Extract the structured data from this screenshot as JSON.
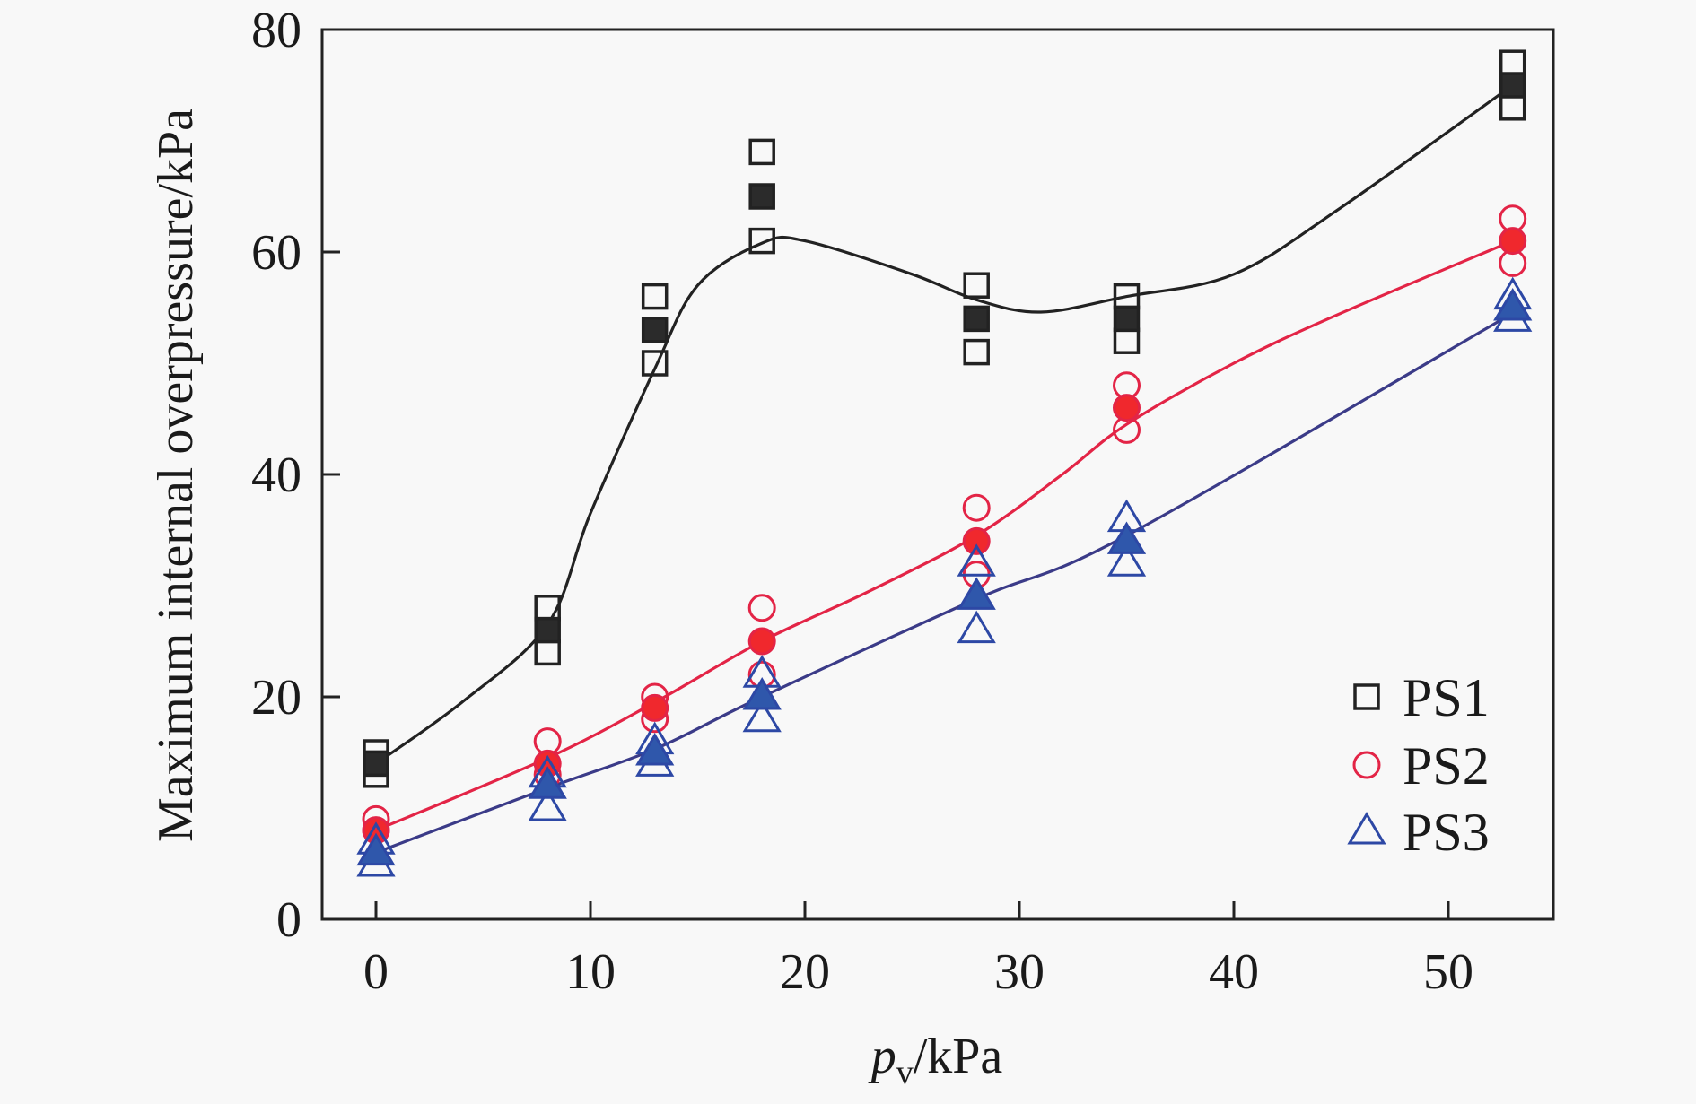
{
  "chart_data": {
    "type": "scatter",
    "title": "",
    "xlabel_main": "p",
    "xlabel_sub": "v",
    "xlabel_unit": "/kPa",
    "ylabel": "Maximum internal overpressure/kPa",
    "xlim": [
      -2.5,
      55
    ],
    "ylim": [
      0,
      80
    ],
    "xticks": [
      0,
      10,
      20,
      30,
      40,
      50
    ],
    "yticks": [
      0,
      20,
      40,
      60,
      80
    ],
    "grid": false,
    "legend_position": "bottom-right",
    "x": [
      0,
      8,
      13,
      18,
      28,
      35,
      53
    ],
    "series": [
      {
        "name": "PS1",
        "marker": "square",
        "color": "#222222",
        "fill": "#2b2b2b",
        "mean": [
          14,
          26,
          53,
          65,
          54,
          54,
          75
        ],
        "upper": [
          15,
          28,
          56,
          69,
          57,
          56,
          77
        ],
        "lower": [
          13,
          24,
          50,
          61,
          51,
          52,
          73
        ],
        "fit_curve": {
          "x": [
            0,
            4,
            8,
            10,
            13,
            15,
            18,
            20,
            25,
            28,
            31,
            35,
            40,
            45,
            53
          ],
          "y": [
            14,
            19.5,
            26.5,
            36.5,
            49.5,
            57,
            60.8,
            61,
            58,
            55.7,
            54.6,
            56,
            58,
            64,
            75
          ]
        }
      },
      {
        "name": "PS2",
        "marker": "circle",
        "color": "#e32446",
        "fill": "#f0282d",
        "mean": [
          8,
          14,
          19,
          25,
          34,
          46,
          61
        ],
        "upper": [
          9,
          16,
          20,
          28,
          37,
          48,
          63
        ],
        "lower": [
          8,
          13,
          18,
          22,
          31,
          44,
          59
        ],
        "fit_curve": {
          "x": [
            0,
            8,
            13,
            18,
            23,
            28,
            32,
            35,
            40,
            45,
            53
          ],
          "y": [
            8,
            14.5,
            19.5,
            25,
            29.5,
            34.5,
            40,
            44.5,
            50,
            54.5,
            61
          ]
        }
      },
      {
        "name": "PS3",
        "marker": "triangle",
        "color": "#2d48a5",
        "fill": "#2f57ab",
        "line_color": "#3b3b88",
        "mean": [
          6,
          12,
          15,
          20,
          29,
          34,
          55
        ],
        "upper": [
          7,
          13,
          16,
          22,
          32,
          36,
          56
        ],
        "lower": [
          5,
          10,
          14,
          18,
          26,
          32,
          54
        ],
        "fit_curve": {
          "x": [
            0,
            8,
            13,
            18,
            28,
            35,
            53
          ],
          "y": [
            6,
            11.8,
            15.3,
            20,
            28.8,
            34.5,
            54.5
          ]
        }
      }
    ]
  }
}
